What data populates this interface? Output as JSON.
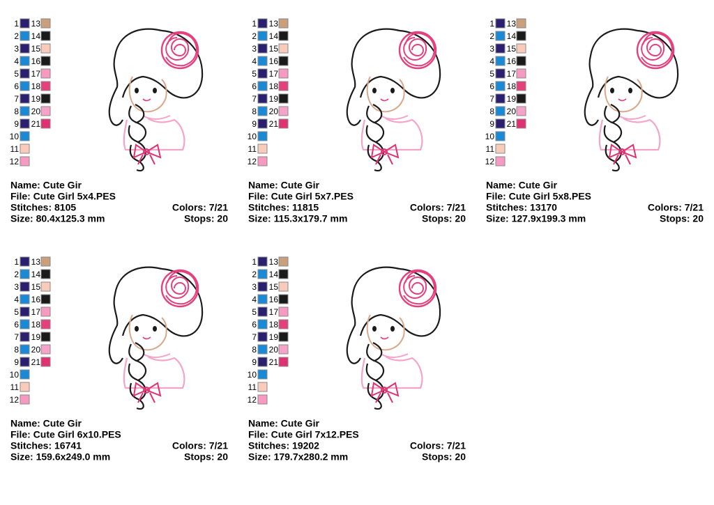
{
  "cards": [
    {
      "swatches": [
        {
          "number": "1",
          "color": "#2b1f6f"
        },
        {
          "number": "2",
          "color": "#1b8ad6"
        },
        {
          "number": "3",
          "color": "#2b1f6f"
        },
        {
          "number": "4",
          "color": "#1b8ad6"
        },
        {
          "number": "5",
          "color": "#2b1f6f"
        },
        {
          "number": "6",
          "color": "#1b8ad6"
        },
        {
          "number": "7",
          "color": "#2b1f6f"
        },
        {
          "number": "8",
          "color": "#1b8ad6"
        },
        {
          "number": "9",
          "color": "#2b1f6f"
        },
        {
          "number": "10",
          "color": "#1b8ad6"
        },
        {
          "number": "11",
          "color": "#f9cbbb"
        },
        {
          "number": "12",
          "color": "#f79ac2"
        },
        {
          "number": "13",
          "color": "#c9a07b"
        },
        {
          "number": "14",
          "color": "#1a1a1a"
        },
        {
          "number": "15",
          "color": "#f9cbbb"
        },
        {
          "number": "16",
          "color": "#1a1a1a"
        },
        {
          "number": "17",
          "color": "#f79ac2"
        },
        {
          "number": "18",
          "color": "#e6407c"
        },
        {
          "number": "19",
          "color": "#1a1a1a"
        },
        {
          "number": "20",
          "color": "#f5a3c9"
        },
        {
          "number": "21",
          "color": "#e03272"
        }
      ],
      "name": "Name: Cute Gir",
      "file": "File: Cute Girl 5x4.PES",
      "stitches": "Stitches: 8105",
      "colors": "Colors: 7/21",
      "size": "Size: 80.4x125.3 mm",
      "stops": "Stops: 20"
    },
    {
      "swatches": [
        {
          "number": "1",
          "color": "#2b1f6f"
        },
        {
          "number": "2",
          "color": "#1b8ad6"
        },
        {
          "number": "3",
          "color": "#2b1f6f"
        },
        {
          "number": "4",
          "color": "#1b8ad6"
        },
        {
          "number": "5",
          "color": "#2b1f6f"
        },
        {
          "number": "6",
          "color": "#1b8ad6"
        },
        {
          "number": "7",
          "color": "#2b1f6f"
        },
        {
          "number": "8",
          "color": "#1b8ad6"
        },
        {
          "number": "9",
          "color": "#2b1f6f"
        },
        {
          "number": "10",
          "color": "#1b8ad6"
        },
        {
          "number": "11",
          "color": "#f9cbbb"
        },
        {
          "number": "12",
          "color": "#f79ac2"
        },
        {
          "number": "13",
          "color": "#c9a07b"
        },
        {
          "number": "14",
          "color": "#1a1a1a"
        },
        {
          "number": "15",
          "color": "#f9cbbb"
        },
        {
          "number": "16",
          "color": "#1a1a1a"
        },
        {
          "number": "17",
          "color": "#f79ac2"
        },
        {
          "number": "18",
          "color": "#e6407c"
        },
        {
          "number": "19",
          "color": "#1a1a1a"
        },
        {
          "number": "20",
          "color": "#f5a3c9"
        },
        {
          "number": "21",
          "color": "#e03272"
        }
      ],
      "name": "Name: Cute Gir",
      "file": "File: Cute Girl 5x7.PES",
      "stitches": "Stitches: 11815",
      "colors": "Colors: 7/21",
      "size": "Size: 115.3x179.7 mm",
      "stops": "Stops: 20"
    },
    {
      "swatches": [
        {
          "number": "1",
          "color": "#2b1f6f"
        },
        {
          "number": "2",
          "color": "#1b8ad6"
        },
        {
          "number": "3",
          "color": "#2b1f6f"
        },
        {
          "number": "4",
          "color": "#1b8ad6"
        },
        {
          "number": "5",
          "color": "#2b1f6f"
        },
        {
          "number": "6",
          "color": "#1b8ad6"
        },
        {
          "number": "7",
          "color": "#2b1f6f"
        },
        {
          "number": "8",
          "color": "#1b8ad6"
        },
        {
          "number": "9",
          "color": "#2b1f6f"
        },
        {
          "number": "10",
          "color": "#1b8ad6"
        },
        {
          "number": "11",
          "color": "#f9cbbb"
        },
        {
          "number": "12",
          "color": "#f79ac2"
        },
        {
          "number": "13",
          "color": "#c9a07b"
        },
        {
          "number": "14",
          "color": "#1a1a1a"
        },
        {
          "number": "15",
          "color": "#f9cbbb"
        },
        {
          "number": "16",
          "color": "#1a1a1a"
        },
        {
          "number": "17",
          "color": "#f79ac2"
        },
        {
          "number": "18",
          "color": "#e6407c"
        },
        {
          "number": "19",
          "color": "#1a1a1a"
        },
        {
          "number": "20",
          "color": "#f5a3c9"
        },
        {
          "number": "21",
          "color": "#e03272"
        }
      ],
      "name": "Name: Cute Gir",
      "file": "File: Cute Girl 5x8.PES",
      "stitches": "Stitches: 13170",
      "colors": "Colors: 7/21",
      "size": "Size: 127.9x199.3 mm",
      "stops": "Stops: 20"
    },
    {
      "swatches": [
        {
          "number": "1",
          "color": "#2b1f6f"
        },
        {
          "number": "2",
          "color": "#1b8ad6"
        },
        {
          "number": "3",
          "color": "#2b1f6f"
        },
        {
          "number": "4",
          "color": "#1b8ad6"
        },
        {
          "number": "5",
          "color": "#2b1f6f"
        },
        {
          "number": "6",
          "color": "#1b8ad6"
        },
        {
          "number": "7",
          "color": "#2b1f6f"
        },
        {
          "number": "8",
          "color": "#1b8ad6"
        },
        {
          "number": "9",
          "color": "#2b1f6f"
        },
        {
          "number": "10",
          "color": "#1b8ad6"
        },
        {
          "number": "11",
          "color": "#f9cbbb"
        },
        {
          "number": "12",
          "color": "#f79ac2"
        },
        {
          "number": "13",
          "color": "#c9a07b"
        },
        {
          "number": "14",
          "color": "#1a1a1a"
        },
        {
          "number": "15",
          "color": "#f9cbbb"
        },
        {
          "number": "16",
          "color": "#1a1a1a"
        },
        {
          "number": "17",
          "color": "#f79ac2"
        },
        {
          "number": "18",
          "color": "#e6407c"
        },
        {
          "number": "19",
          "color": "#1a1a1a"
        },
        {
          "number": "20",
          "color": "#f5a3c9"
        },
        {
          "number": "21",
          "color": "#e03272"
        }
      ],
      "name": "Name: Cute Gir",
      "file": "File: Cute Girl 6x10.PES",
      "stitches": "Stitches: 16741",
      "colors": "Colors: 7/21",
      "size": "Size: 159.6x249.0 mm",
      "stops": "Stops: 20"
    },
    {
      "swatches": [
        {
          "number": "1",
          "color": "#2b1f6f"
        },
        {
          "number": "2",
          "color": "#1b8ad6"
        },
        {
          "number": "3",
          "color": "#2b1f6f"
        },
        {
          "number": "4",
          "color": "#1b8ad6"
        },
        {
          "number": "5",
          "color": "#2b1f6f"
        },
        {
          "number": "6",
          "color": "#1b8ad6"
        },
        {
          "number": "7",
          "color": "#2b1f6f"
        },
        {
          "number": "8",
          "color": "#1b8ad6"
        },
        {
          "number": "9",
          "color": "#2b1f6f"
        },
        {
          "number": "10",
          "color": "#1b8ad6"
        },
        {
          "number": "11",
          "color": "#f9cbbb"
        },
        {
          "number": "12",
          "color": "#f79ac2"
        },
        {
          "number": "13",
          "color": "#c9a07b"
        },
        {
          "number": "14",
          "color": "#1a1a1a"
        },
        {
          "number": "15",
          "color": "#f9cbbb"
        },
        {
          "number": "16",
          "color": "#1a1a1a"
        },
        {
          "number": "17",
          "color": "#f79ac2"
        },
        {
          "number": "18",
          "color": "#e6407c"
        },
        {
          "number": "19",
          "color": "#1a1a1a"
        },
        {
          "number": "20",
          "color": "#f5a3c9"
        },
        {
          "number": "21",
          "color": "#e03272"
        }
      ],
      "name": "Name: Cute Gir",
      "file": "File: Cute Girl 7x12.PES",
      "stitches": "Stitches: 19202",
      "colors": "Colors: 7/21",
      "size": "Size: 179.7x280.2 mm",
      "stops": "Stops: 20"
    }
  ]
}
